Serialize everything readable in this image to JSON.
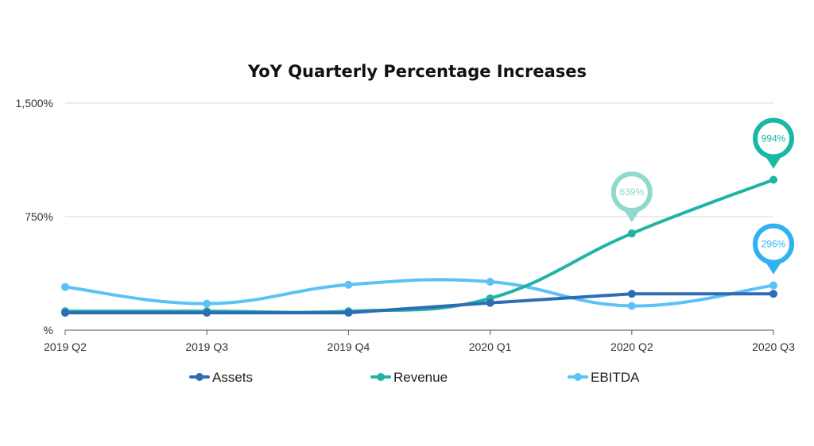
{
  "chart_data": {
    "type": "line",
    "title": "YoY Quarterly Percentage Increases",
    "categories": [
      "2019 Q2",
      "2019 Q3",
      "2019 Q4",
      "2020 Q1",
      "2020 Q2",
      "2020 Q3"
    ],
    "ylim": [
      0,
      1500
    ],
    "yticks": [
      {
        "value": 0,
        "label": "%"
      },
      {
        "value": 750,
        "label": "750%"
      },
      {
        "value": 1500,
        "label": "1,500%"
      }
    ],
    "grid": true,
    "legend_position": "bottom",
    "series": [
      {
        "name": "Assets",
        "color": "#2e6db4",
        "smooth": false,
        "values": [
          115,
          115,
          115,
          180,
          240,
          240
        ]
      },
      {
        "name": "Revenue",
        "color": "#1fb5a3",
        "smooth": true,
        "values": [
          125,
          125,
          125,
          210,
          639,
          994
        ]
      },
      {
        "name": "EBITDA",
        "color": "#5bc2f5",
        "smooth": true,
        "values": [
          285,
          175,
          300,
          320,
          160,
          296
        ]
      }
    ],
    "callouts": [
      {
        "series": 1,
        "index": 4,
        "text": "639%",
        "color": "#8fd9ce",
        "text_color": "#8fd9ce"
      },
      {
        "series": 1,
        "index": 5,
        "text": "994%",
        "color": "#19b8a5",
        "text_color": "#19b8a5"
      },
      {
        "series": 2,
        "index": 5,
        "text": "296%",
        "color": "#2fb0f2",
        "text_color": "#2fb0f2"
      }
    ]
  }
}
